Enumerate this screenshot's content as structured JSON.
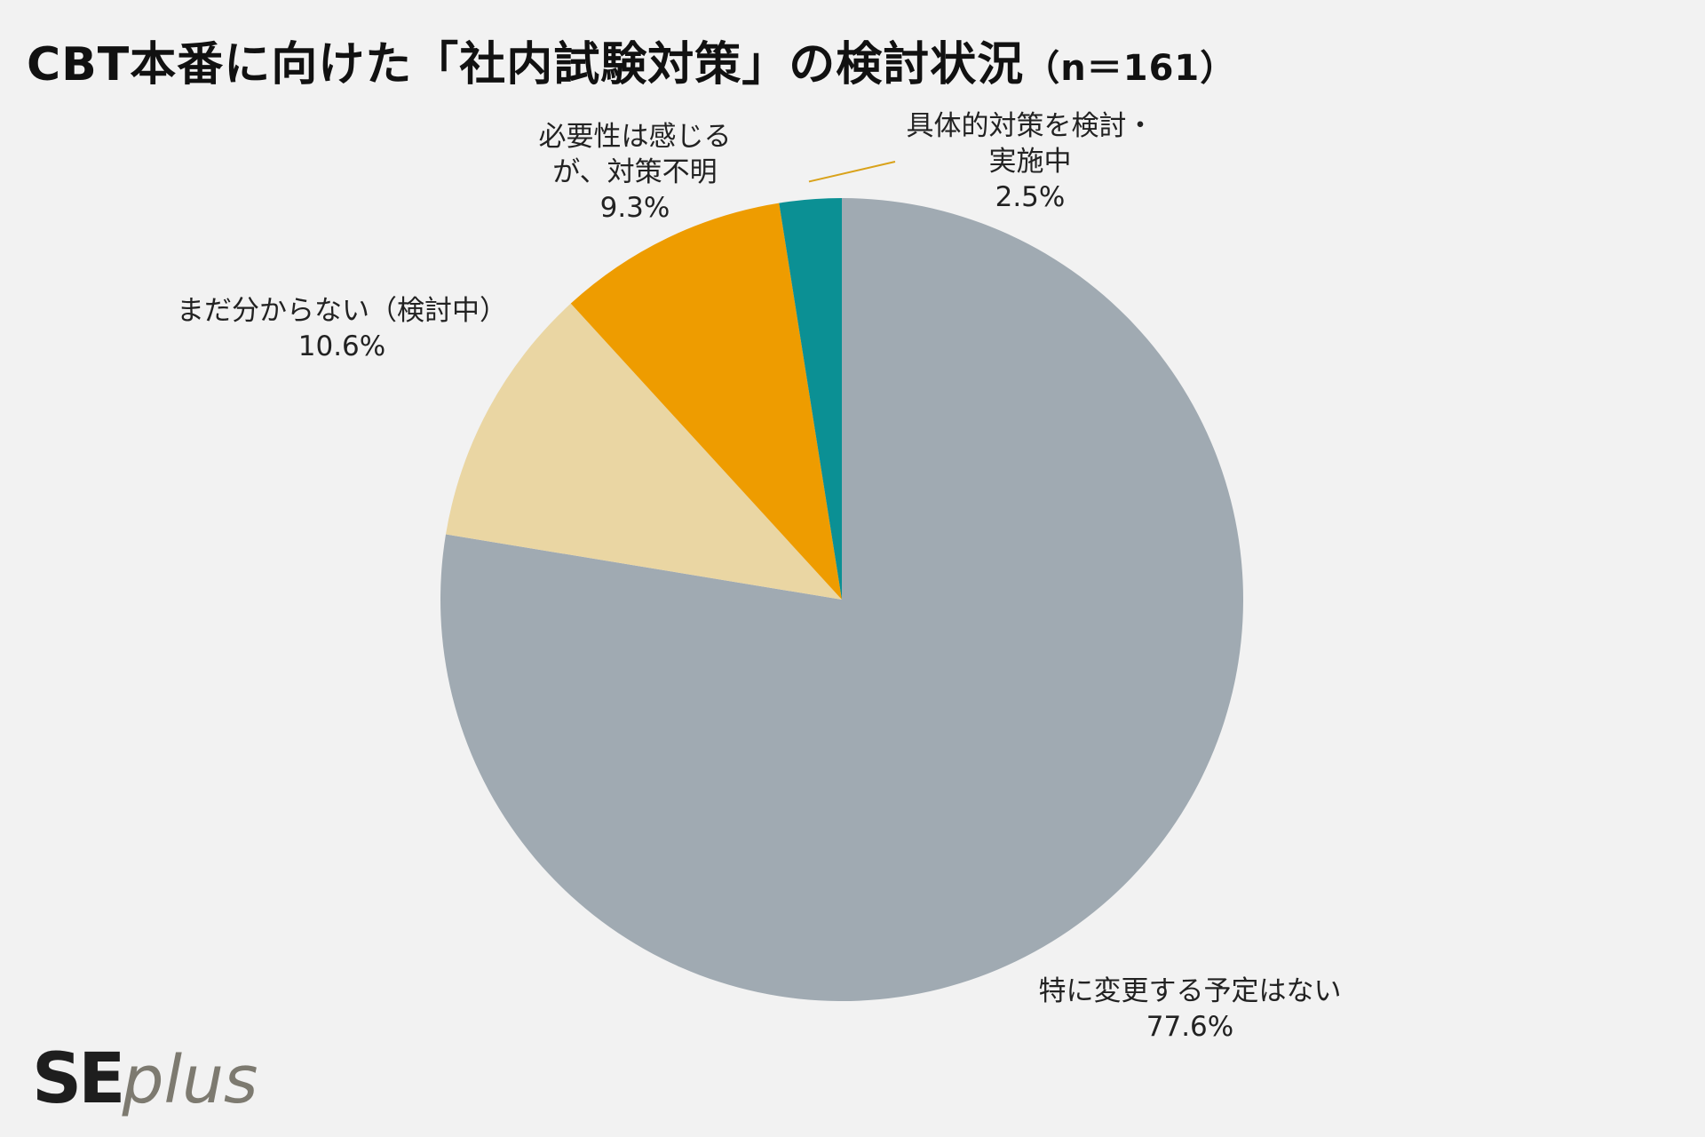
{
  "header": {
    "title": "CBT本番に向けた「社内試験対策」の検討状況",
    "sample": "（n＝161）"
  },
  "chart_data": {
    "type": "pie",
    "start": "12 o'clock",
    "direction": "clockwise",
    "slices": [
      {
        "label": "特に変更する予定はない",
        "value": 77.6,
        "value_label": "77.6%",
        "color": "#a0aab2"
      },
      {
        "label": "まだ分からない（検討中）",
        "value": 10.6,
        "value_label": "10.6%",
        "color": "#ead6a3"
      },
      {
        "label_lines": [
          "必要性は感じる",
          "が、対策不明"
        ],
        "value": 9.3,
        "value_label": "9.3%",
        "color": "#ee9c00"
      },
      {
        "label_lines": [
          "具体的対策を検討・",
          "実施中"
        ],
        "value": 2.5,
        "value_label": "2.5%",
        "color": "#0b9094"
      }
    ]
  },
  "brand": {
    "logo_se": "SE",
    "logo_plus": "plus"
  }
}
